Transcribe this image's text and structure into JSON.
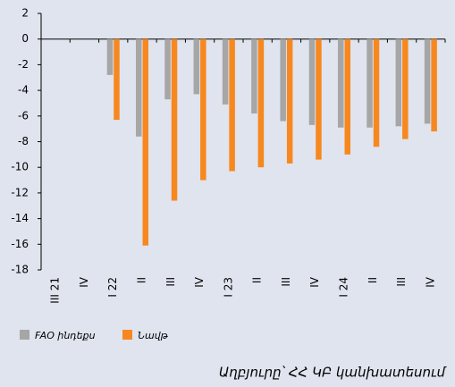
{
  "chart_data": {
    "type": "bar",
    "categories": [
      "III 21",
      "IV",
      "I 22",
      "II",
      "III",
      "IV",
      "I 23",
      "II",
      "III",
      "IV",
      "I 24",
      "II",
      "III",
      "IV"
    ],
    "series": [
      {
        "name": "FAO ինդեքս",
        "color": "#a6a6a6",
        "values": [
          null,
          null,
          -2.8,
          -7.6,
          -4.7,
          -4.3,
          -5.1,
          -5.8,
          -6.4,
          -6.7,
          -6.9,
          -6.9,
          -6.8,
          -6.6
        ]
      },
      {
        "name": "Նավթ",
        "color": "#f7881f",
        "values": [
          null,
          null,
          -6.3,
          -16.1,
          -12.6,
          -11.0,
          -10.3,
          -10.0,
          -9.7,
          -9.4,
          -9.0,
          -8.4,
          -7.8,
          -7.2
        ]
      }
    ],
    "ylim": [
      -18,
      2
    ],
    "yticks": [
      2,
      0,
      -2,
      -4,
      -6,
      -8,
      -10,
      -12,
      -14,
      -16,
      -18
    ],
    "source": "Աղբյուրը՝ ՀՀ ԿԲ կանխատեսում"
  }
}
